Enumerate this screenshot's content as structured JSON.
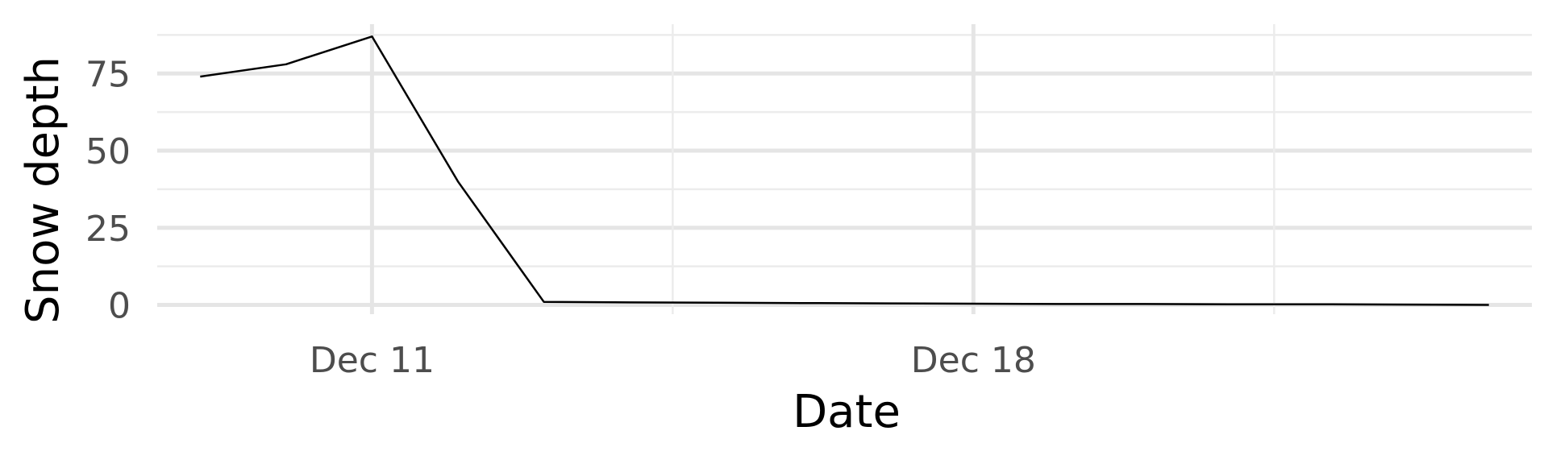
{
  "chart_data": {
    "type": "line",
    "title": "",
    "xlabel": "Date",
    "ylabel": "Snow depth",
    "x_tick_labels": [
      "Dec 11",
      "Dec 18"
    ],
    "y_ticks": [
      0,
      25,
      50,
      75
    ],
    "y_tick_labels": [
      "0",
      "25",
      "50",
      "75"
    ],
    "grid": true,
    "series": [
      {
        "x": [
          "2023-12-09",
          "2023-12-10",
          "2023-12-11",
          "2023-12-12",
          "2023-12-13",
          "2023-12-14",
          "2023-12-15",
          "2023-12-16",
          "2023-12-17",
          "2023-12-18",
          "2023-12-19",
          "2023-12-20",
          "2023-12-21",
          "2023-12-22",
          "2023-12-23",
          "2023-12-24"
        ],
        "values": [
          74,
          78,
          87,
          40,
          1,
          0.8,
          0.7,
          0.6,
          0.5,
          0.4,
          0.3,
          0.3,
          0.2,
          0.2,
          0.1,
          0
        ],
        "color": "#000000"
      }
    ]
  }
}
